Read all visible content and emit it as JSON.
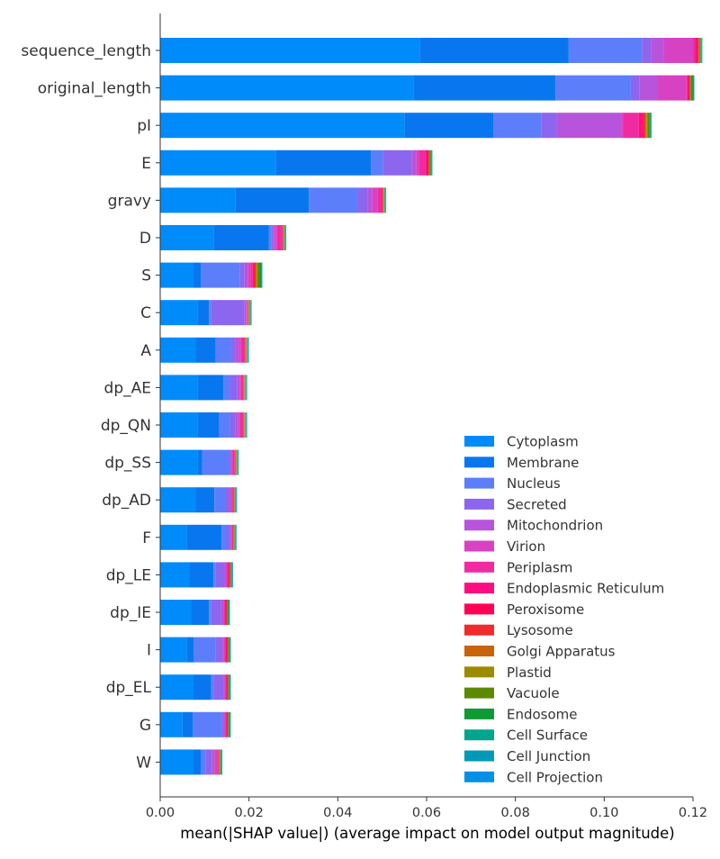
{
  "chart_data": {
    "type": "bar",
    "orientation": "horizontal",
    "stacked": true,
    "title": "",
    "xlabel": "mean(|SHAP value|) (average impact on model output magnitude)",
    "ylabel": "",
    "xlim": [
      0.0,
      0.12
    ],
    "xticks": [
      "0.00",
      "0.02",
      "0.04",
      "0.06",
      "0.08",
      "0.10",
      "0.12"
    ],
    "xtick_values": [
      0.0,
      0.02,
      0.04,
      0.06,
      0.08,
      0.1,
      0.12
    ],
    "grid": false,
    "legend_position": "lower-right",
    "categories": [
      "sequence_length",
      "original_length",
      "pI",
      "E",
      "gravy",
      "D",
      "S",
      "C",
      "A",
      "dp_AE",
      "dp_QN",
      "dp_SS",
      "dp_AD",
      "F",
      "dp_LE",
      "dp_IE",
      "I",
      "dp_EL",
      "G",
      "W"
    ],
    "series": [
      {
        "name": "Cytoplasm",
        "color": "#008bfb",
        "values": [
          0.0585,
          0.057,
          0.055,
          0.026,
          0.017,
          0.012,
          0.0075,
          0.0085,
          0.008,
          0.0085,
          0.0085,
          0.0085,
          0.008,
          0.006,
          0.0065,
          0.007,
          0.006,
          0.0075,
          0.005,
          0.0075
        ]
      },
      {
        "name": "Membrane",
        "color": "#0877ef",
        "values": [
          0.0335,
          0.032,
          0.02,
          0.0215,
          0.0165,
          0.0125,
          0.0017,
          0.0025,
          0.0045,
          0.0057,
          0.0048,
          0.001,
          0.0042,
          0.0078,
          0.0055,
          0.004,
          0.0015,
          0.004,
          0.0023,
          0.0017
        ]
      },
      {
        "name": "Nucleus",
        "color": "#5d7efb",
        "values": [
          0.0165,
          0.017,
          0.0108,
          0.0027,
          0.011,
          0.0005,
          0.0088,
          0.0005,
          0.0035,
          0.0015,
          0.0025,
          0.006,
          0.0025,
          0.0012,
          0.0005,
          0.0005,
          0.005,
          0.0005,
          0.0065,
          0.001
        ]
      },
      {
        "name": "Secreted",
        "color": "#8c66ee",
        "values": [
          0.002,
          0.002,
          0.0035,
          0.0065,
          0.0022,
          0.0005,
          0.001,
          0.0075,
          0.001,
          0.0017,
          0.0012,
          0.0004,
          0.0008,
          0.0008,
          0.002,
          0.0022,
          0.0015,
          0.0022,
          0.0005,
          0.0015
        ]
      },
      {
        "name": "Mitochondrion",
        "color": "#b854db",
        "values": [
          0.003,
          0.004,
          0.0145,
          0.001,
          0.001,
          0.0003,
          0.0008,
          0.0004,
          0.0007,
          0.0005,
          0.0006,
          0.0002,
          0.0004,
          0.0002,
          0.0003,
          0.0005,
          0.0003,
          0.0003,
          0.0003,
          0.0005
        ]
      },
      {
        "name": "Virion",
        "color": "#d742c2",
        "values": [
          0.0065,
          0.0065,
          0.0005,
          0.0005,
          0.0012,
          0.0005,
          0.0005,
          0.0001,
          0.0005,
          0.0002,
          0.0004,
          0.0002,
          0.0002,
          0.0001,
          0.0003,
          0.0002,
          0.0002,
          0.0002,
          0.0001,
          0.0006
        ]
      },
      {
        "name": "Periplasm",
        "color": "#f02ba1",
        "values": [
          0.0005,
          0.0002,
          0.0035,
          0.0017,
          0.0008,
          0.001,
          0.0005,
          0.0001,
          0.0007,
          0.0004,
          0.0005,
          0.0004,
          0.0002,
          0.0001,
          0.0002,
          0.0002,
          0.0003,
          0.0002,
          0.0002,
          0.0002
        ]
      },
      {
        "name": "Endoplasmic Reticulum",
        "color": "#ff0d80",
        "values": [
          0.0004,
          0.0003,
          0.0008,
          0.0002,
          0.0002,
          0.0002,
          0.0002,
          0.0001,
          0.0002,
          0.0002,
          0.0002,
          0.0001,
          0.0001,
          0.0001,
          0.0002,
          0.0002,
          0.0002,
          0.0001,
          0.0001,
          0.0001
        ]
      },
      {
        "name": "Peroxisome",
        "color": "#ff0055",
        "values": [
          0.0002,
          0.0002,
          0.0003,
          0.0002,
          0.0002,
          0.0001,
          0.0002,
          0.0001,
          0.0001,
          0.0001,
          0.0001,
          0.0001,
          0.0001,
          0.0001,
          0.0001,
          0.0001,
          0.0001,
          0.0001,
          0.0001,
          0.0001
        ]
      },
      {
        "name": "Lysosome",
        "color": "#f02b2b",
        "values": [
          0.0002,
          0.0001,
          0.0004,
          0.0002,
          0.0001,
          0.0001,
          0.0003,
          0.0001,
          0.0001,
          0.0001,
          0.0001,
          0.0001,
          0.0001,
          0.0001,
          0.0001,
          0.0001,
          0.0001,
          0.0001,
          0.0001,
          0.0001
        ]
      },
      {
        "name": "Golgi Apparatus",
        "color": "#c9630a",
        "values": [
          0.0001,
          0.0001,
          0.0002,
          0.0001,
          0.0001,
          0.0001,
          0.0002,
          0.0001,
          0.0001,
          0.0001,
          0.0001,
          0.0001,
          0.0001,
          0.0001,
          0.0001,
          0.0001,
          0.0001,
          0.0001,
          0.0001,
          0.0001
        ]
      },
      {
        "name": "Plastid",
        "color": "#9c8b00",
        "values": [
          0.0001,
          0.0001,
          0.0002,
          0.0001,
          0.0001,
          0.0001,
          0.0002,
          0.0001,
          0.0001,
          0.0001,
          0.0001,
          0.0001,
          0.0001,
          0.0001,
          0.0001,
          0.0001,
          0.0001,
          0.0001,
          0.0001,
          0.0001
        ]
      },
      {
        "name": "Vacuole",
        "color": "#5b8a00",
        "values": [
          0.0002,
          0.0004,
          0.0005,
          0.0002,
          0.0001,
          0.0001,
          0.0005,
          0.0001,
          0.0001,
          0.0001,
          0.0001,
          0.0001,
          0.0001,
          0.0001,
          0.0001,
          0.0001,
          0.0001,
          0.0001,
          0.0001,
          0.0001
        ]
      },
      {
        "name": "Endosome",
        "color": "#0f9a34",
        "values": [
          0.0001,
          0.0001,
          0.0002,
          0.0001,
          0.0001,
          0.0001,
          0.0003,
          0.0001,
          0.0001,
          0.0001,
          0.0001,
          0.0001,
          0.0001,
          0.0001,
          0.0001,
          0.0001,
          0.0001,
          0.0001,
          0.0001,
          0.0001
        ]
      },
      {
        "name": "Cell Surface",
        "color": "#00a58e",
        "values": [
          0.0001,
          0.0001,
          0.0001,
          0.0001,
          0.0001,
          0.0001,
          0.0001,
          0.0001,
          0.0001,
          0.0001,
          0.0001,
          0.0001,
          0.0001,
          0.0001,
          0.0001,
          0.0001,
          0.0001,
          0.0001,
          0.0001,
          0.0001
        ]
      },
      {
        "name": "Cell Junction",
        "color": "#0099b6",
        "values": [
          0.0001,
          0.0001,
          0.0001,
          0.0001,
          0.0001,
          0.0001,
          0.0001,
          0.0001,
          0.0001,
          0.0001,
          0.0001,
          0.0001,
          0.0001,
          0.0001,
          0.0001,
          0.0001,
          0.0001,
          0.0001,
          0.0001,
          0.0001
        ]
      },
      {
        "name": "Cell Projection",
        "color": "#0090e6",
        "values": [
          0.0001,
          0.0001,
          0.0001,
          0.0001,
          0.0001,
          0.0001,
          0.0001,
          0.0001,
          0.0001,
          0.0001,
          0.0001,
          0.0001,
          0.0001,
          0.0001,
          0.0001,
          0.0001,
          0.0001,
          0.0001,
          0.0001,
          0.0001
        ]
      }
    ]
  }
}
